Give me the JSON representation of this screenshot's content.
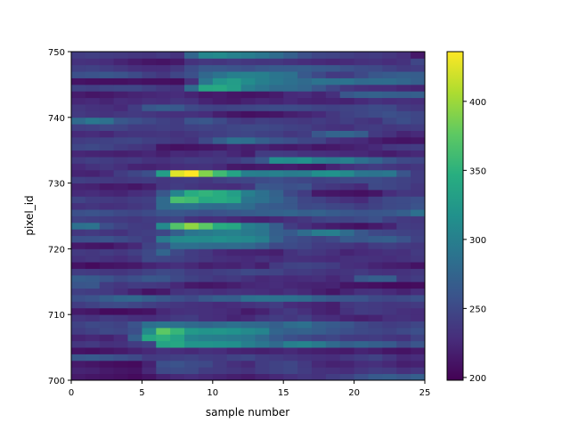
{
  "chart_data": {
    "type": "heatmap",
    "title": "",
    "xlabel": "sample number",
    "ylabel": "pixel_id",
    "xlim": [
      0,
      25
    ],
    "ylim": [
      700,
      750
    ],
    "x_ticks": [
      0,
      5,
      10,
      15,
      20,
      25
    ],
    "y_ticks": [
      700,
      710,
      720,
      730,
      740,
      750
    ],
    "colormap": "viridis",
    "color_range": [
      198,
      436
    ],
    "colorbar_ticks": [
      200,
      250,
      300,
      350,
      400
    ],
    "grid": false,
    "x_edges_start": 0,
    "y_start": 700,
    "rows_note_order": "ascending pixel_id",
    "z": [
      [
        215,
        212,
        210,
        208,
        205,
        210,
        220,
        225,
        228,
        225,
        222,
        218,
        215,
        220,
        225,
        230,
        235,
        232,
        240,
        245,
        255,
        265,
        268,
        262,
        270
      ],
      [
        222,
        220,
        215,
        212,
        210,
        225,
        250,
        252,
        250,
        240,
        238,
        235,
        232,
        240,
        245,
        248,
        240,
        232,
        230,
        228,
        235,
        240,
        238,
        230,
        235
      ],
      [
        215,
        212,
        208,
        206,
        205,
        220,
        255,
        258,
        252,
        250,
        238,
        230,
        225,
        240,
        245,
        248,
        238,
        225,
        220,
        222,
        228,
        230,
        225,
        218,
        220
      ],
      [
        262,
        265,
        260,
        255,
        250,
        238,
        240,
        242,
        245,
        240,
        238,
        245,
        248,
        240,
        238,
        235,
        232,
        230,
        228,
        235,
        240,
        245,
        235,
        225,
        228
      ],
      [
        210,
        208,
        212,
        215,
        220,
        225,
        232,
        228,
        225,
        230,
        228,
        222,
        220,
        218,
        222,
        225,
        220,
        218,
        216,
        215,
        222,
        218,
        212,
        210,
        215
      ],
      [
        235,
        238,
        230,
        232,
        240,
        245,
        335,
        340,
        320,
        320,
        318,
        315,
        300,
        290,
        280,
        300,
        305,
        295,
        280,
        270,
        275,
        270,
        265,
        250,
        260
      ],
      [
        222,
        225,
        220,
        228,
        270,
        340,
        350,
        335,
        305,
        300,
        298,
        295,
        292,
        280,
        265,
        255,
        250,
        245,
        248,
        240,
        238,
        240,
        235,
        232,
        245
      ],
      [
        240,
        245,
        250,
        248,
        255,
        310,
        375,
        355,
        325,
        320,
        322,
        318,
        310,
        305,
        275,
        270,
        272,
        268,
        260,
        255,
        250,
        248,
        245,
        250,
        255
      ],
      [
        245,
        250,
        248,
        245,
        258,
        285,
        290,
        285,
        280,
        275,
        280,
        285,
        280,
        278,
        270,
        282,
        285,
        270,
        265,
        260,
        250,
        245,
        240,
        242,
        248
      ],
      [
        235,
        232,
        238,
        236,
        230,
        228,
        232,
        238,
        240,
        230,
        228,
        222,
        225,
        235,
        240,
        236,
        242,
        230,
        228,
        222,
        218,
        222,
        230,
        232,
        228
      ],
      [
        215,
        212,
        205,
        205,
        208,
        210,
        225,
        230,
        232,
        230,
        228,
        225,
        215,
        220,
        232,
        238,
        230,
        222,
        218,
        232,
        240,
        238,
        235,
        230,
        228
      ],
      [
        240,
        245,
        250,
        252,
        248,
        242,
        238,
        235,
        232,
        230,
        226,
        228,
        232,
        236,
        240,
        228,
        225,
        222,
        218,
        236,
        240,
        238,
        235,
        236,
        238
      ],
      [
        255,
        258,
        268,
        275,
        278,
        270,
        262,
        255,
        250,
        262,
        270,
        268,
        285,
        288,
        286,
        285,
        282,
        270,
        262,
        260,
        258,
        250,
        248,
        250,
        255
      ],
      [
        242,
        240,
        238,
        230,
        220,
        210,
        215,
        232,
        235,
        232,
        228,
        232,
        230,
        228,
        225,
        230,
        225,
        218,
        212,
        222,
        230,
        232,
        226,
        220,
        228
      ],
      [
        260,
        262,
        240,
        235,
        240,
        238,
        236,
        225,
        215,
        212,
        214,
        218,
        224,
        226,
        228,
        224,
        222,
        220,
        222,
        212,
        210,
        208,
        205,
        205,
        206
      ],
      [
        268,
        265,
        258,
        250,
        255,
        262,
        260,
        250,
        245,
        240,
        235,
        238,
        232,
        225,
        228,
        226,
        228,
        230,
        224,
        232,
        262,
        270,
        268,
        235,
        240
      ],
      [
        240,
        238,
        236,
        234,
        238,
        245,
        250,
        248,
        240,
        238,
        242,
        245,
        250,
        248,
        246,
        238,
        240,
        236,
        232,
        234,
        238,
        232,
        230,
        232,
        236
      ],
      [
        210,
        205,
        210,
        212,
        214,
        222,
        226,
        230,
        225,
        218,
        222,
        220,
        226,
        218,
        238,
        245,
        246,
        244,
        240,
        230,
        228,
        222,
        218,
        216,
        210
      ],
      [
        232,
        236,
        232,
        228,
        234,
        250,
        248,
        245,
        240,
        236,
        230,
        228,
        226,
        232,
        226,
        232,
        230,
        228,
        226,
        230,
        232,
        230,
        228,
        232,
        236
      ],
      [
        238,
        236,
        240,
        236,
        242,
        250,
        275,
        250,
        240,
        236,
        226,
        222,
        222,
        220,
        218,
        232,
        238,
        236,
        230,
        222,
        226,
        228,
        232,
        230,
        238
      ],
      [
        215,
        212,
        210,
        218,
        225,
        245,
        255,
        285,
        285,
        282,
        280,
        282,
        278,
        268,
        250,
        252,
        248,
        240,
        238,
        236,
        230,
        240,
        242,
        238,
        236
      ],
      [
        255,
        256,
        258,
        252,
        246,
        240,
        295,
        310,
        312,
        310,
        315,
        310,
        308,
        300,
        272,
        255,
        250,
        245,
        250,
        265,
        262,
        268,
        270,
        258,
        245
      ],
      [
        236,
        238,
        235,
        232,
        240,
        242,
        248,
        270,
        290,
        295,
        300,
        302,
        295,
        290,
        270,
        265,
        282,
        298,
        300,
        282,
        262,
        250,
        248,
        245,
        242
      ],
      [
        285,
        288,
        255,
        246,
        240,
        238,
        310,
        370,
        395,
        375,
        345,
        340,
        300,
        292,
        268,
        240,
        230,
        222,
        216,
        212,
        208,
        215,
        222,
        240,
        238
      ],
      [
        245,
        242,
        240,
        238,
        236,
        240,
        244,
        246,
        232,
        228,
        230,
        225,
        222,
        220,
        225,
        230,
        236,
        244,
        248,
        246,
        250,
        256,
        244,
        238,
        236
      ],
      [
        256,
        258,
        255,
        250,
        248,
        252,
        260,
        262,
        258,
        255,
        258,
        262,
        266,
        270,
        272,
        275,
        270,
        272,
        266,
        262,
        258,
        260,
        262,
        270,
        285
      ],
      [
        232,
        235,
        230,
        232,
        236,
        240,
        280,
        285,
        288,
        282,
        280,
        284,
        282,
        268,
        265,
        262,
        250,
        252,
        248,
        246,
        240,
        245,
        250,
        252,
        258
      ],
      [
        246,
        240,
        238,
        236,
        240,
        242,
        280,
        365,
        360,
        342,
        345,
        338,
        290,
        286,
        275,
        262,
        248,
        244,
        236,
        230,
        226,
        242,
        250,
        252,
        255
      ],
      [
        226,
        228,
        224,
        222,
        228,
        232,
        262,
        305,
        345,
        352,
        345,
        330,
        300,
        285,
        272,
        250,
        240,
        214,
        212,
        210,
        208,
        212,
        228,
        236,
        234
      ],
      [
        222,
        220,
        214,
        216,
        212,
        218,
        235,
        240,
        236,
        232,
        230,
        228,
        235,
        262,
        260,
        256,
        258,
        240,
        236,
        232,
        226,
        250,
        248,
        244,
        236
      ],
      [
        242,
        240,
        238,
        236,
        238,
        240,
        236,
        238,
        240,
        236,
        242,
        246,
        248,
        252,
        255,
        250,
        248,
        244,
        246,
        250,
        252,
        252,
        248,
        245,
        240
      ],
      [
        222,
        220,
        226,
        240,
        248,
        255,
        330,
        425,
        436,
        390,
        360,
        335,
        300,
        298,
        302,
        296,
        298,
        315,
        318,
        310,
        290,
        288,
        292,
        260,
        240
      ],
      [
        226,
        232,
        236,
        230,
        222,
        220,
        224,
        228,
        230,
        232,
        226,
        214,
        212,
        215,
        214,
        216,
        212,
        210,
        222,
        230,
        236,
        240,
        236,
        232,
        236
      ],
      [
        238,
        242,
        240,
        236,
        238,
        232,
        230,
        236,
        240,
        238,
        236,
        240,
        248,
        262,
        315,
        312,
        318,
        300,
        295,
        302,
        285,
        275,
        260,
        250,
        248
      ],
      [
        224,
        222,
        220,
        218,
        220,
        224,
        218,
        226,
        224,
        228,
        232,
        224,
        216,
        240,
        240,
        238,
        232,
        230,
        228,
        226,
        225,
        220,
        216,
        222,
        225
      ],
      [
        248,
        250,
        246,
        240,
        236,
        232,
        212,
        208,
        210,
        212,
        214,
        222,
        218,
        222,
        216,
        214,
        218,
        212,
        214,
        218,
        222,
        226,
        236,
        238,
        240
      ],
      [
        240,
        242,
        244,
        246,
        248,
        242,
        240,
        236,
        232,
        250,
        270,
        286,
        284,
        270,
        260,
        256,
        248,
        246,
        232,
        228,
        226,
        218,
        212,
        210,
        212
      ],
      [
        226,
        228,
        224,
        232,
        234,
        234,
        236,
        232,
        236,
        240,
        242,
        246,
        248,
        244,
        242,
        236,
        240,
        262,
        274,
        276,
        268,
        238,
        232,
        222,
        226
      ],
      [
        242,
        244,
        248,
        246,
        240,
        240,
        242,
        240,
        244,
        246,
        244,
        248,
        250,
        250,
        248,
        244,
        242,
        236,
        232,
        230,
        238,
        240,
        236,
        238,
        240
      ],
      [
        280,
        292,
        286,
        262,
        256,
        250,
        244,
        240,
        258,
        262,
        252,
        240,
        236,
        242,
        240,
        238,
        236,
        240,
        236,
        242,
        236,
        232,
        248,
        254,
        248
      ],
      [
        238,
        234,
        232,
        236,
        238,
        236,
        232,
        230,
        232,
        228,
        218,
        212,
        208,
        210,
        212,
        218,
        222,
        226,
        236,
        244,
        248,
        252,
        256,
        252,
        248
      ],
      [
        236,
        232,
        230,
        226,
        240,
        262,
        268,
        264,
        250,
        246,
        244,
        246,
        248,
        250,
        252,
        252,
        250,
        246,
        244,
        246,
        248,
        252,
        250,
        238,
        236
      ],
      [
        224,
        226,
        222,
        228,
        226,
        230,
        228,
        234,
        232,
        222,
        216,
        214,
        220,
        224,
        222,
        226,
        222,
        220,
        222,
        220,
        226,
        232,
        228,
        230,
        228
      ],
      [
        216,
        212,
        214,
        218,
        222,
        224,
        226,
        228,
        222,
        214,
        216,
        212,
        210,
        212,
        216,
        226,
        228,
        222,
        230,
        262,
        270,
        272,
        270,
        268,
        270
      ],
      [
        245,
        242,
        246,
        248,
        248,
        242,
        236,
        232,
        282,
        340,
        342,
        330,
        300,
        290,
        282,
        282,
        276,
        262,
        248,
        236,
        230,
        228,
        228,
        224,
        222
      ],
      [
        210,
        208,
        208,
        208,
        210,
        208,
        208,
        206,
        230,
        290,
        320,
        328,
        312,
        300,
        292,
        285,
        280,
        288,
        286,
        288,
        280,
        282,
        282,
        276,
        270
      ],
      [
        256,
        258,
        262,
        258,
        252,
        242,
        236,
        248,
        256,
        278,
        288,
        300,
        302,
        300,
        290,
        286,
        264,
        250,
        238,
        240,
        250,
        262,
        266,
        270,
        268
      ],
      [
        242,
        244,
        240,
        236,
        230,
        228,
        228,
        236,
        252,
        262,
        262,
        258,
        256,
        262,
        266,
        266,
        268,
        264,
        262,
        256,
        252,
        250,
        244,
        238,
        240
      ],
      [
        232,
        230,
        228,
        222,
        216,
        212,
        210,
        214,
        232,
        236,
        234,
        238,
        236,
        234,
        236,
        232,
        228,
        226,
        224,
        226,
        230,
        232,
        228,
        232,
        248
      ],
      [
        240,
        242,
        240,
        238,
        236,
        234,
        238,
        232,
        275,
        306,
        310,
        302,
        298,
        290,
        282,
        270,
        256,
        248,
        246,
        242,
        238,
        240,
        236,
        230,
        214
      ]
    ]
  }
}
